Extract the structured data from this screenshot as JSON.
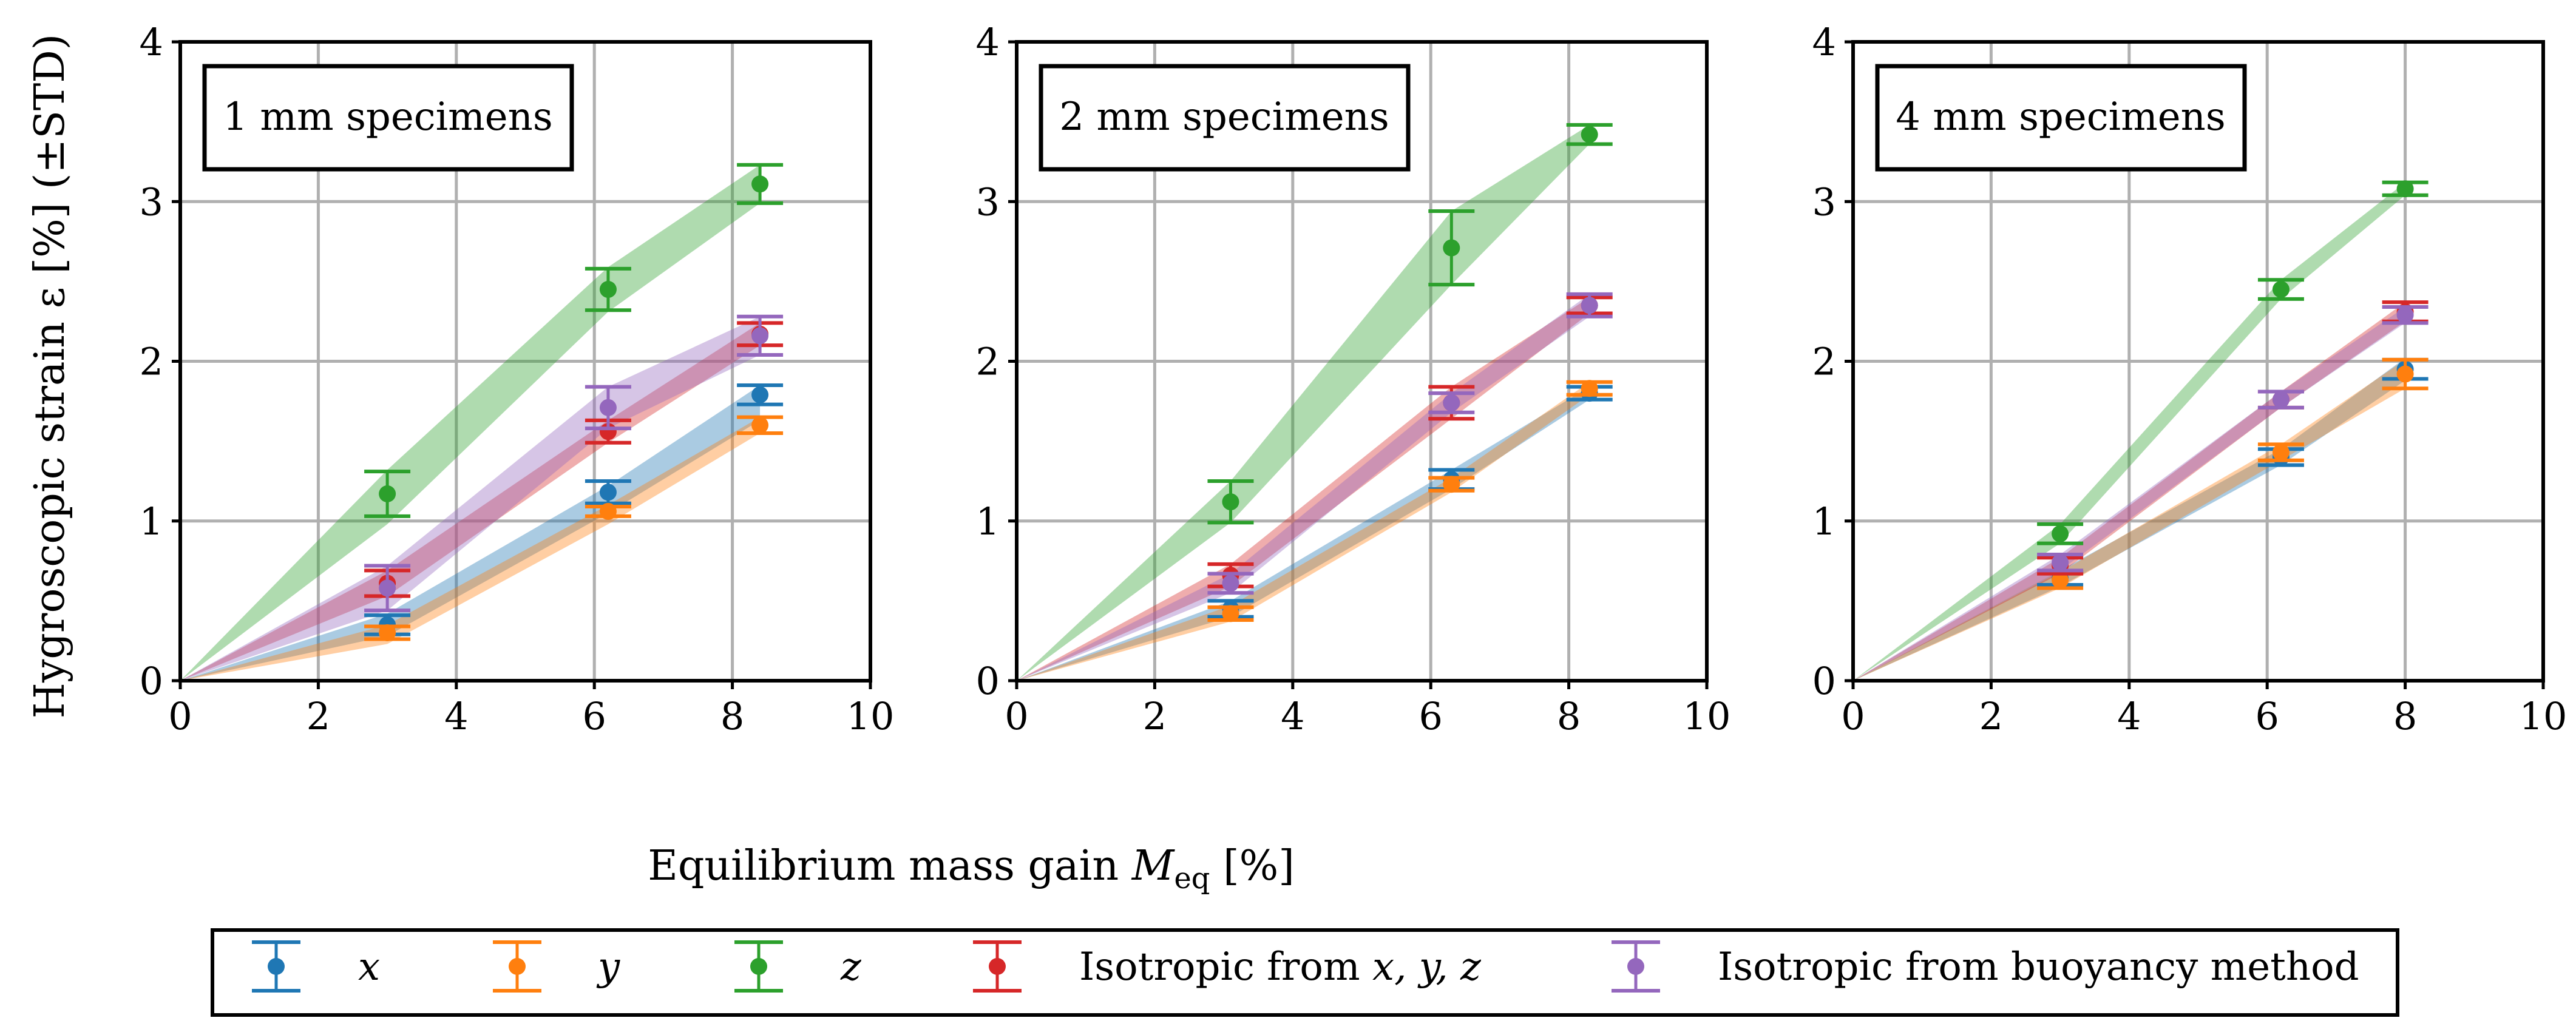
{
  "figure": {
    "ylabel": "Hygroscopic strain ε [%] (±STD)",
    "xlabel_prefix": "Equilibrium mass gain ",
    "xlabel_symbol": "M",
    "xlabel_subscript": "eq",
    "xlabel_suffix": " [%]"
  },
  "legend": {
    "items": [
      {
        "key": "x",
        "label": "x",
        "italic": true
      },
      {
        "key": "y",
        "label": "y",
        "italic": true
      },
      {
        "key": "z",
        "label": "z",
        "italic": true
      },
      {
        "key": "iso",
        "label_prefix": "Isotropic from ",
        "label_vars": "x, y, z",
        "italic": false
      },
      {
        "key": "buoy",
        "label": "Isotropic from buoyancy method",
        "italic": false
      }
    ]
  },
  "colors": {
    "x": "#1f77b4",
    "y": "#ff7f0e",
    "z": "#2ca02c",
    "iso": "#d62728",
    "buoy": "#9467bd",
    "grid": "#b0b0b0"
  },
  "chart_data": [
    {
      "type": "scatter",
      "title": "1 mm specimens",
      "xlim": [
        0,
        10
      ],
      "ylim": [
        0,
        4
      ],
      "xticks": [
        "0",
        "2",
        "4",
        "6",
        "8",
        "10"
      ],
      "yticks": [
        "0",
        "1",
        "2",
        "3",
        "4"
      ],
      "grid": true,
      "series": [
        {
          "name": "x",
          "points": [
            {
              "x": 3.0,
              "y": 0.35,
              "err": 0.06
            },
            {
              "x": 6.2,
              "y": 1.18,
              "err": 0.07
            },
            {
              "x": 8.4,
              "y": 1.79,
              "err": 0.06
            }
          ],
          "band": [
            [
              0.28,
              0.42
            ],
            [
              1.05,
              1.22
            ],
            [
              1.63,
              1.85
            ]
          ]
        },
        {
          "name": "y",
          "points": [
            {
              "x": 3.0,
              "y": 0.3,
              "err": 0.04
            },
            {
              "x": 6.2,
              "y": 1.06,
              "err": 0.03
            },
            {
              "x": 8.4,
              "y": 1.6,
              "err": 0.05
            }
          ],
          "band": [
            [
              0.23,
              0.35
            ],
            [
              0.98,
              1.1
            ],
            [
              1.55,
              1.65
            ]
          ]
        },
        {
          "name": "z",
          "points": [
            {
              "x": 3.0,
              "y": 1.17,
              "err": 0.14
            },
            {
              "x": 6.2,
              "y": 2.45,
              "err": 0.13
            },
            {
              "x": 8.4,
              "y": 3.11,
              "err": 0.12
            }
          ],
          "band": [
            [
              0.98,
              1.32
            ],
            [
              2.31,
              2.59
            ],
            [
              2.99,
              3.23
            ]
          ]
        },
        {
          "name": "Isotropic from x, y, z",
          "points": [
            {
              "x": 3.0,
              "y": 0.61,
              "err": 0.08
            },
            {
              "x": 6.2,
              "y": 1.56,
              "err": 0.07
            },
            {
              "x": 8.4,
              "y": 2.17,
              "err": 0.07
            }
          ],
          "band": [
            [
              0.53,
              0.69
            ],
            [
              1.49,
              1.63
            ],
            [
              2.1,
              2.24
            ]
          ]
        },
        {
          "name": "Isotropic from buoyancy method",
          "points": [
            {
              "x": 3.0,
              "y": 0.58,
              "err": 0.14
            },
            {
              "x": 6.2,
              "y": 1.71,
              "err": 0.13
            },
            {
              "x": 8.4,
              "y": 2.16,
              "err": 0.12
            }
          ],
          "band": [
            [
              0.44,
              0.72
            ],
            [
              1.58,
              1.84
            ],
            [
              2.04,
              2.28
            ]
          ]
        }
      ]
    },
    {
      "type": "scatter",
      "title": "2 mm specimens",
      "xlim": [
        0,
        10
      ],
      "ylim": [
        0,
        4
      ],
      "xticks": [
        "0",
        "2",
        "4",
        "6",
        "8",
        "10"
      ],
      "yticks": [
        "0",
        "1",
        "2",
        "3",
        "4"
      ],
      "grid": true,
      "series": [
        {
          "name": "x",
          "points": [
            {
              "x": 3.1,
              "y": 0.45,
              "err": 0.05
            },
            {
              "x": 6.3,
              "y": 1.26,
              "err": 0.06
            },
            {
              "x": 8.3,
              "y": 1.8,
              "err": 0.04
            }
          ],
          "band": [
            [
              0.4,
              0.5
            ],
            [
              1.2,
              1.32
            ],
            [
              1.76,
              1.84
            ]
          ]
        },
        {
          "name": "y",
          "points": [
            {
              "x": 3.1,
              "y": 0.42,
              "err": 0.04
            },
            {
              "x": 6.3,
              "y": 1.23,
              "err": 0.04
            },
            {
              "x": 8.3,
              "y": 1.83,
              "err": 0.04
            }
          ],
          "band": [
            [
              0.37,
              0.47
            ],
            [
              1.18,
              1.27
            ],
            [
              1.79,
              1.87
            ]
          ]
        },
        {
          "name": "z",
          "points": [
            {
              "x": 3.1,
              "y": 1.12,
              "err": 0.13
            },
            {
              "x": 6.3,
              "y": 2.71,
              "err": 0.23
            },
            {
              "x": 8.3,
              "y": 3.42,
              "err": 0.06
            }
          ],
          "band": [
            [
              0.99,
              1.25
            ],
            [
              2.48,
              2.94
            ],
            [
              3.36,
              3.48
            ]
          ]
        },
        {
          "name": "Isotropic from x, y, z",
          "points": [
            {
              "x": 3.1,
              "y": 0.66,
              "err": 0.07
            },
            {
              "x": 6.3,
              "y": 1.74,
              "err": 0.1
            },
            {
              "x": 8.3,
              "y": 2.35,
              "err": 0.05
            }
          ],
          "band": [
            [
              0.59,
              0.73
            ],
            [
              1.64,
              1.84
            ],
            [
              2.3,
              2.4
            ]
          ]
        },
        {
          "name": "Isotropic from buoyancy method",
          "points": [
            {
              "x": 3.1,
              "y": 0.61,
              "err": 0.06
            },
            {
              "x": 6.3,
              "y": 1.74,
              "err": 0.06
            },
            {
              "x": 8.3,
              "y": 2.35,
              "err": 0.07
            }
          ],
          "band": [
            [
              0.55,
              0.67
            ],
            [
              1.68,
              1.8
            ],
            [
              2.28,
              2.42
            ]
          ]
        }
      ]
    },
    {
      "type": "scatter",
      "title": "4 mm specimens",
      "xlim": [
        0,
        10
      ],
      "ylim": [
        0,
        4
      ],
      "xticks": [
        "0",
        "2",
        "4",
        "6",
        "8",
        "10"
      ],
      "yticks": [
        "0",
        "1",
        "2",
        "3",
        "4"
      ],
      "grid": true,
      "series": [
        {
          "name": "x",
          "points": [
            {
              "x": 3.0,
              "y": 0.64,
              "err": 0.04
            },
            {
              "x": 6.2,
              "y": 1.4,
              "err": 0.05
            },
            {
              "x": 8.0,
              "y": 1.95,
              "err": 0.06
            }
          ],
          "band": [
            [
              0.59,
              0.69
            ],
            [
              1.35,
              1.45
            ],
            [
              1.88,
              2.02
            ]
          ]
        },
        {
          "name": "y",
          "points": [
            {
              "x": 3.0,
              "y": 0.63,
              "err": 0.05
            },
            {
              "x": 6.2,
              "y": 1.43,
              "err": 0.05
            },
            {
              "x": 8.0,
              "y": 1.92,
              "err": 0.09
            }
          ],
          "band": [
            [
              0.58,
              0.68
            ],
            [
              1.38,
              1.48
            ],
            [
              1.83,
              2.01
            ]
          ]
        },
        {
          "name": "z",
          "points": [
            {
              "x": 3.0,
              "y": 0.92,
              "err": 0.06
            },
            {
              "x": 6.2,
              "y": 2.45,
              "err": 0.06
            },
            {
              "x": 8.0,
              "y": 3.08,
              "err": 0.04
            }
          ],
          "band": [
            [
              0.86,
              0.98
            ],
            [
              2.39,
              2.51
            ],
            [
              3.04,
              3.12
            ]
          ]
        },
        {
          "name": "Isotropic from x, y, z",
          "points": [
            {
              "x": 3.0,
              "y": 0.72,
              "err": 0.05
            },
            {
              "x": 6.2,
              "y": 1.76,
              "err": 0.05
            },
            {
              "x": 8.0,
              "y": 2.31,
              "err": 0.06
            }
          ],
          "band": [
            [
              0.67,
              0.77
            ],
            [
              1.71,
              1.81
            ],
            [
              2.25,
              2.37
            ]
          ]
        },
        {
          "name": "Isotropic from buoyancy method",
          "points": [
            {
              "x": 3.0,
              "y": 0.74,
              "err": 0.05
            },
            {
              "x": 6.2,
              "y": 1.76,
              "err": 0.05
            },
            {
              "x": 8.0,
              "y": 2.29,
              "err": 0.05
            }
          ],
          "band": [
            [
              0.69,
              0.79
            ],
            [
              1.71,
              1.81
            ],
            [
              2.24,
              2.34
            ]
          ]
        }
      ]
    }
  ]
}
